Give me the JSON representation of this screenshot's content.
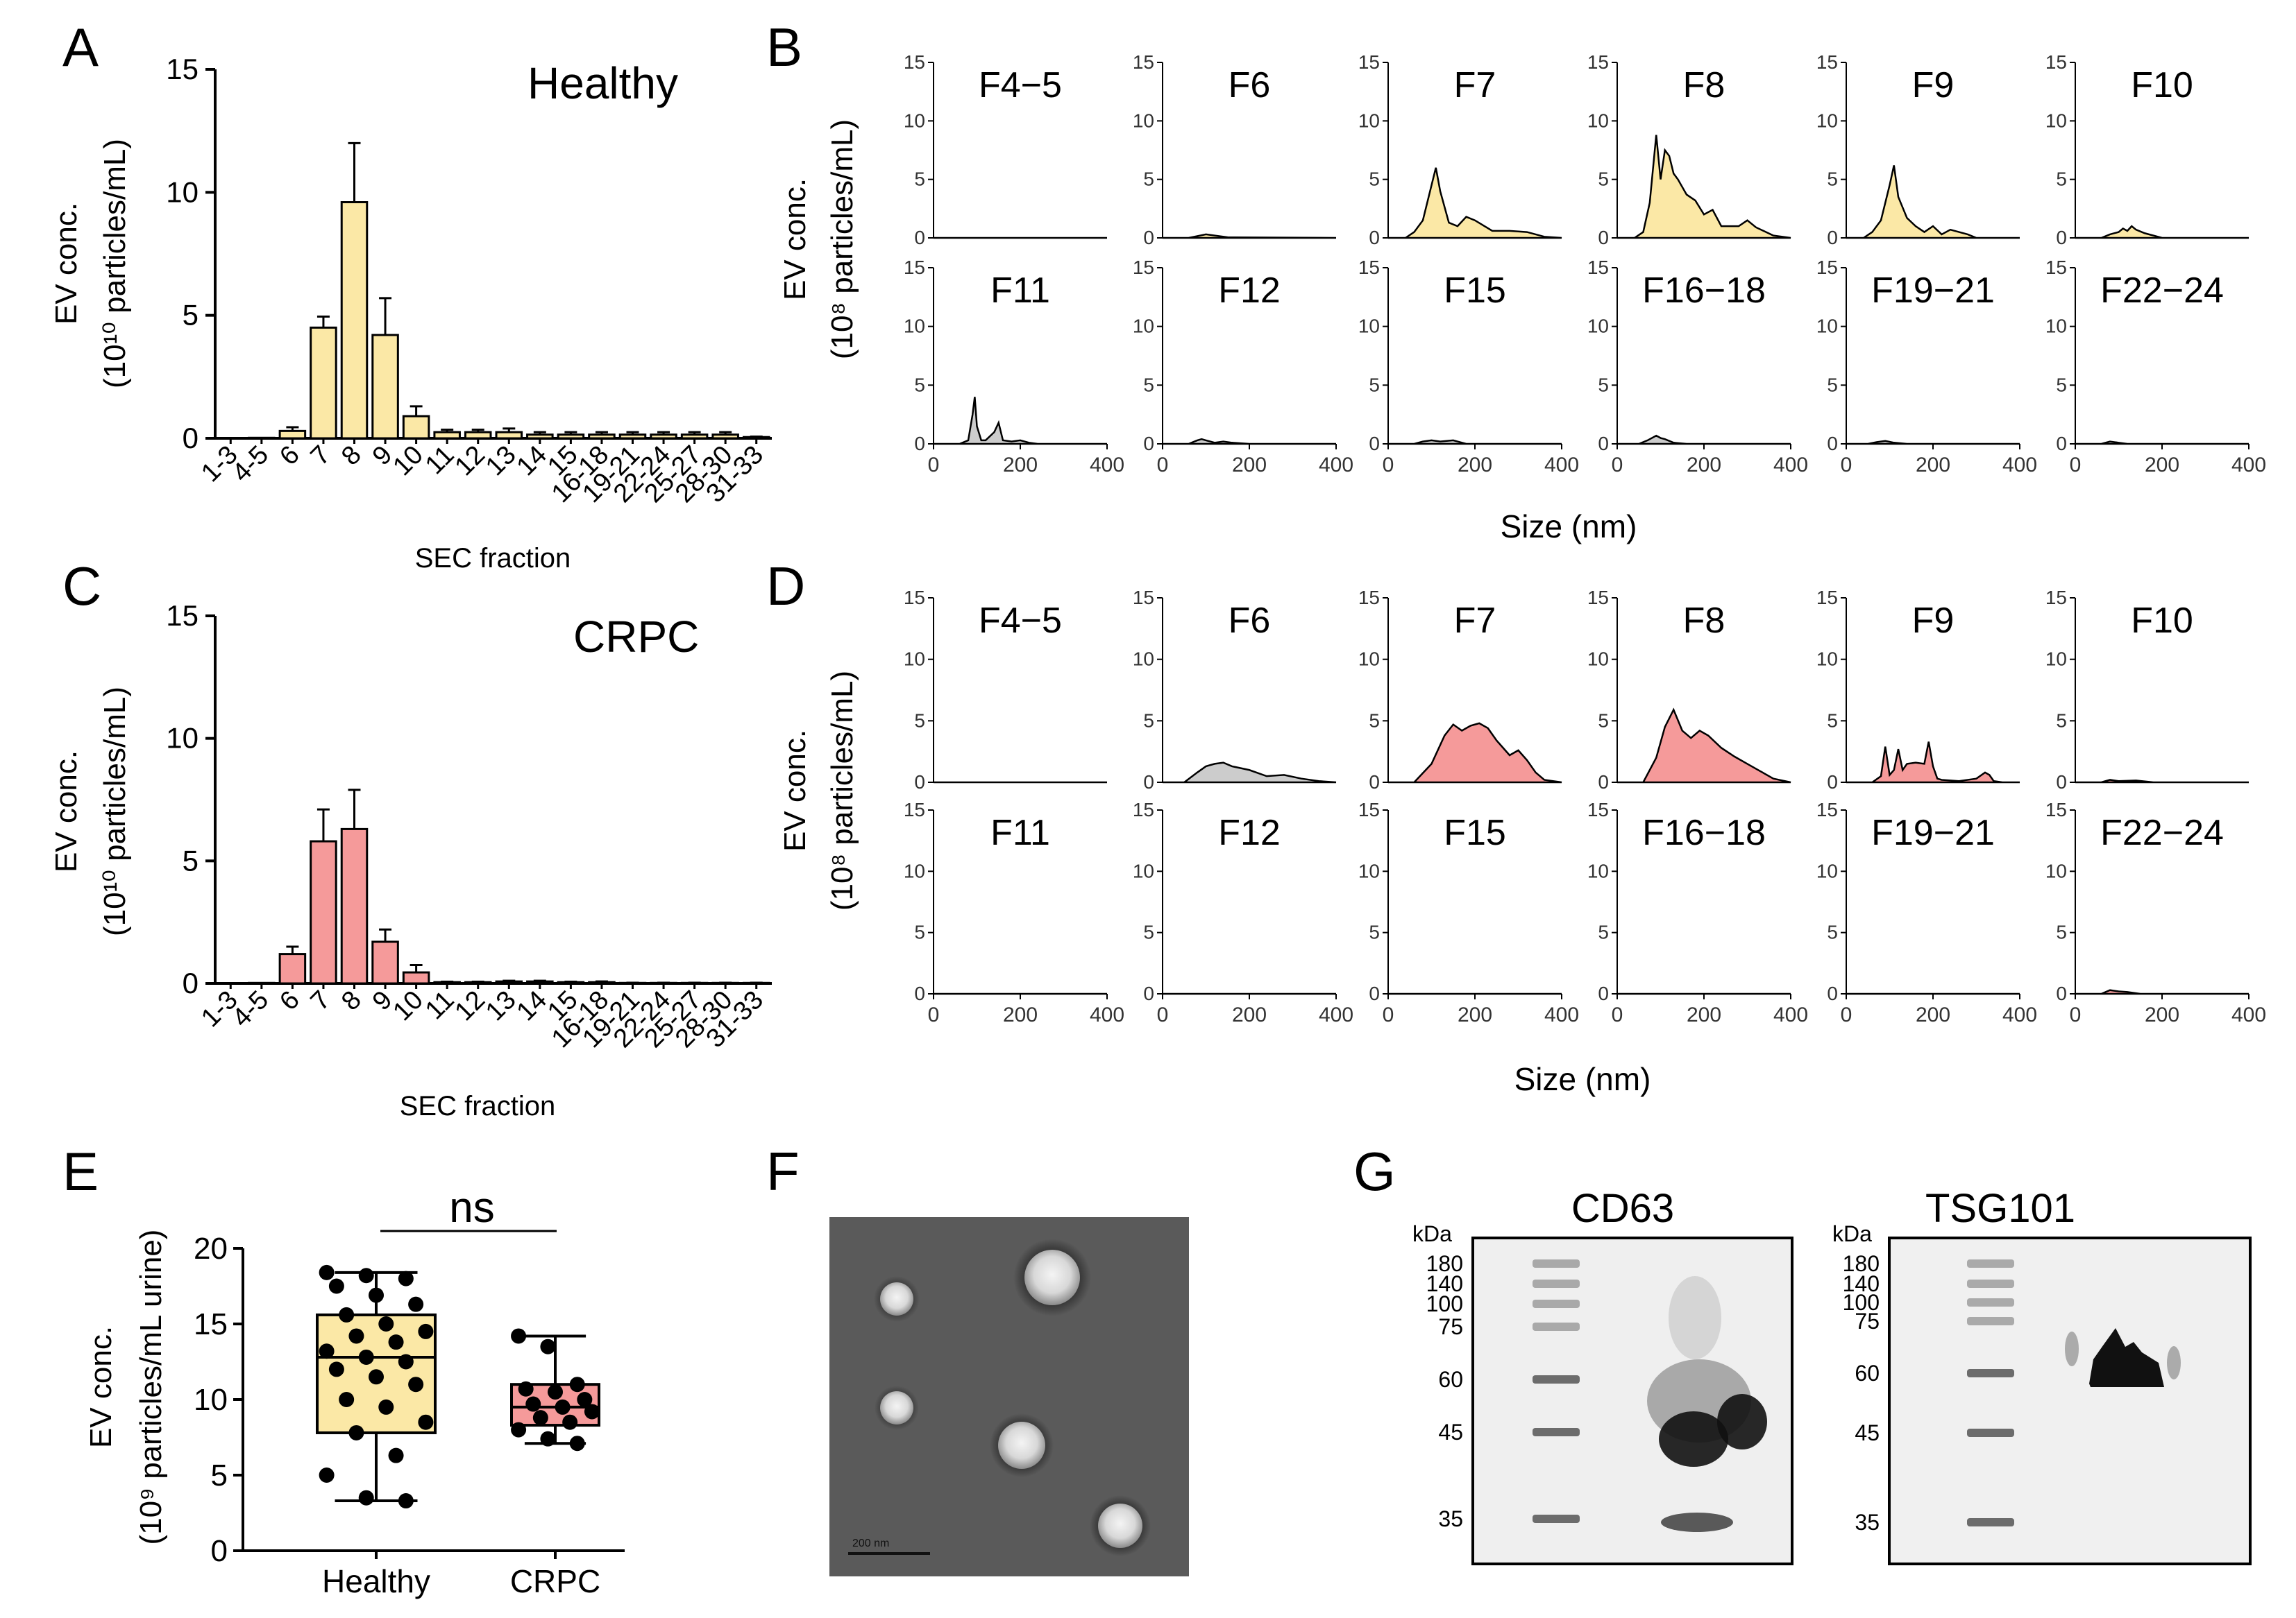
{
  "colors": {
    "healthy": "#fbe8a6",
    "crpc": "#f59a9a",
    "grey": "#cccccc",
    "line": "#000000",
    "tem_bg": "#5a5a5a",
    "blot_bg": "#efefef"
  },
  "panels": {
    "A": {
      "letter": "A",
      "group_label": "Healthy",
      "ylabel_top": "EV conc.",
      "ylabel_bottom": "(10¹⁰ particles/mL)",
      "xlabel": "SEC fraction"
    },
    "C": {
      "letter": "C",
      "group_label": "CRPC",
      "ylabel_top": "EV conc.",
      "ylabel_bottom": "(10¹⁰ particles/mL)",
      "xlabel": "SEC fraction"
    },
    "B": {
      "letter": "B",
      "ylabel_top": "EV conc.",
      "ylabel_bottom": "(10⁸ particles/mL)",
      "xlabel": "Size (nm)"
    },
    "D": {
      "letter": "D",
      "ylabel_top": "EV conc.",
      "ylabel_bottom": "(10⁸ particles/mL)",
      "xlabel": "Size (nm)"
    },
    "E": {
      "letter": "E",
      "ylabel_top": "EV conc.",
      "ylabel_bottom": "(10⁹ particles/mL urine)",
      "significance": "ns"
    },
    "F": {
      "letter": "F",
      "scale_bar": "200 nm"
    },
    "G": {
      "letter": "G",
      "blots": [
        {
          "title": "CD63",
          "unit": "kDa",
          "markers": [
            "180",
            "140",
            "100",
            "75",
            "60",
            "45",
            "35"
          ]
        },
        {
          "title": "TSG101",
          "unit": "kDa",
          "markers": [
            "180",
            "140",
            "100",
            "75",
            "60",
            "45",
            "35"
          ]
        }
      ]
    }
  },
  "chart_data": [
    {
      "panel": "A",
      "type": "bar",
      "categories": [
        "1-3",
        "4-5",
        "6",
        "7",
        "8",
        "9",
        "10",
        "11",
        "12",
        "13",
        "14",
        "15",
        "16-18",
        "19-21",
        "22-24",
        "25-27",
        "28-30",
        "31-33"
      ],
      "values": [
        0.0,
        0.02,
        0.3,
        4.5,
        9.6,
        4.2,
        0.9,
        0.25,
        0.25,
        0.25,
        0.15,
        0.15,
        0.15,
        0.15,
        0.15,
        0.15,
        0.15,
        0.05
      ],
      "errors": [
        0.0,
        0.0,
        0.15,
        0.45,
        2.4,
        1.5,
        0.4,
        0.1,
        0.1,
        0.15,
        0.1,
        0.1,
        0.1,
        0.1,
        0.1,
        0.1,
        0.1,
        0.02
      ],
      "ylim": [
        0,
        15
      ],
      "yticks": [
        0,
        5,
        10,
        15
      ]
    },
    {
      "panel": "C",
      "type": "bar",
      "categories": [
        "1-3",
        "4-5",
        "6",
        "7",
        "8",
        "9",
        "10",
        "11",
        "12",
        "13",
        "14",
        "15",
        "16-18",
        "19-21",
        "22-24",
        "25-27",
        "28-30",
        "31-33"
      ],
      "values": [
        0.0,
        0.02,
        1.2,
        5.8,
        6.3,
        1.7,
        0.45,
        0.05,
        0.05,
        0.08,
        0.08,
        0.05,
        0.05,
        0.02,
        0.02,
        0.02,
        0.02,
        0.02
      ],
      "errors": [
        0.0,
        0.0,
        0.3,
        1.3,
        1.6,
        0.5,
        0.3,
        0.02,
        0.02,
        0.03,
        0.03,
        0.02,
        0.03,
        0.01,
        0.01,
        0.01,
        0.01,
        0.01
      ],
      "ylim": [
        0,
        15
      ],
      "yticks": [
        0,
        5,
        10,
        15
      ]
    },
    {
      "panel": "B",
      "type": "area",
      "xlim": [
        0,
        400
      ],
      "ylim": [
        0,
        15
      ],
      "xticks": [
        0,
        200,
        400
      ],
      "yticks": [
        0,
        5,
        10,
        15
      ],
      "subplots": [
        {
          "label": "F4−5",
          "fill": "healthy",
          "x": [
            0,
            400
          ],
          "y": [
            0,
            0
          ]
        },
        {
          "label": "F6",
          "fill": "healthy",
          "x": [
            0,
            60,
            80,
            100,
            120,
            150,
            400
          ],
          "y": [
            0,
            0,
            0.15,
            0.3,
            0.2,
            0.05,
            0
          ]
        },
        {
          "label": "F7",
          "fill": "healthy",
          "x": [
            0,
            40,
            60,
            80,
            100,
            110,
            120,
            140,
            160,
            180,
            200,
            240,
            280,
            320,
            360,
            400
          ],
          "y": [
            0,
            0,
            0.5,
            1.5,
            4.5,
            6.0,
            4.0,
            1.3,
            1.0,
            1.8,
            1.5,
            0.6,
            0.6,
            0.5,
            0.1,
            0
          ]
        },
        {
          "label": "F8",
          "fill": "healthy",
          "x": [
            0,
            40,
            60,
            75,
            90,
            100,
            110,
            120,
            130,
            140,
            160,
            180,
            200,
            220,
            240,
            280,
            300,
            320,
            360,
            400
          ],
          "y": [
            0,
            0,
            0.5,
            3.0,
            8.8,
            5.0,
            7.5,
            7.0,
            5.5,
            5.0,
            3.7,
            3.2,
            2.0,
            2.4,
            1.0,
            1.0,
            1.5,
            0.9,
            0.2,
            0
          ]
        },
        {
          "label": "F9",
          "fill": "healthy",
          "x": [
            0,
            40,
            60,
            80,
            100,
            110,
            120,
            140,
            160,
            180,
            200,
            220,
            240,
            280,
            300,
            400
          ],
          "y": [
            0,
            0,
            0.5,
            1.5,
            4.5,
            6.2,
            3.5,
            1.7,
            1.0,
            0.5,
            1.0,
            0.3,
            0.7,
            0.3,
            0,
            0
          ]
        },
        {
          "label": "F10",
          "fill": "healthy",
          "x": [
            0,
            60,
            80,
            100,
            110,
            120,
            130,
            140,
            160,
            180,
            200,
            400
          ],
          "y": [
            0,
            0,
            0.3,
            0.5,
            0.8,
            0.6,
            1.0,
            0.7,
            0.4,
            0.2,
            0,
            0
          ]
        },
        {
          "label": "F11",
          "fill": "grey",
          "x": [
            0,
            60,
            80,
            90,
            95,
            100,
            110,
            120,
            140,
            150,
            160,
            180,
            200,
            220,
            240,
            400
          ],
          "y": [
            0,
            0,
            0.3,
            2.5,
            4.0,
            1.5,
            0.3,
            0.3,
            1.0,
            1.8,
            0.3,
            0.2,
            0.3,
            0.1,
            0,
            0
          ]
        },
        {
          "label": "F12",
          "fill": "grey",
          "x": [
            0,
            60,
            80,
            90,
            100,
            120,
            140,
            160,
            200,
            400
          ],
          "y": [
            0,
            0,
            0.3,
            0.4,
            0.3,
            0.1,
            0.2,
            0.1,
            0,
            0
          ]
        },
        {
          "label": "F15",
          "fill": "grey",
          "x": [
            0,
            60,
            80,
            100,
            120,
            150,
            180,
            400
          ],
          "y": [
            0,
            0,
            0.2,
            0.3,
            0.2,
            0.3,
            0,
            0
          ]
        },
        {
          "label": "F16−18",
          "fill": "grey",
          "x": [
            0,
            50,
            70,
            90,
            100,
            110,
            130,
            160,
            400
          ],
          "y": [
            0,
            0,
            0.3,
            0.7,
            0.5,
            0.4,
            0.1,
            0,
            0
          ]
        },
        {
          "label": "F19−21",
          "fill": "grey",
          "x": [
            0,
            50,
            70,
            90,
            110,
            140,
            400
          ],
          "y": [
            0,
            0,
            0.15,
            0.25,
            0.1,
            0,
            0
          ]
        },
        {
          "label": "F22−24",
          "fill": "grey",
          "x": [
            0,
            60,
            80,
            100,
            120,
            400
          ],
          "y": [
            0,
            0,
            0.2,
            0.1,
            0,
            0
          ]
        }
      ]
    },
    {
      "panel": "D",
      "type": "area",
      "xlim": [
        0,
        400
      ],
      "ylim": [
        0,
        15
      ],
      "xticks": [
        0,
        200,
        400
      ],
      "yticks": [
        0,
        5,
        10,
        15
      ],
      "subplots": [
        {
          "label": "F4−5",
          "fill": "crpc",
          "x": [
            0,
            400
          ],
          "y": [
            0,
            0
          ]
        },
        {
          "label": "F6",
          "fill": "grey",
          "x": [
            0,
            50,
            80,
            100,
            120,
            140,
            160,
            200,
            240,
            280,
            320,
            360,
            400
          ],
          "y": [
            0,
            0,
            0.8,
            1.3,
            1.5,
            1.6,
            1.3,
            1.0,
            0.5,
            0.6,
            0.3,
            0.1,
            0
          ]
        },
        {
          "label": "F7",
          "fill": "crpc",
          "x": [
            0,
            60,
            100,
            130,
            150,
            170,
            190,
            210,
            230,
            250,
            280,
            300,
            320,
            340,
            360,
            400
          ],
          "y": [
            0,
            0,
            1.5,
            3.8,
            4.7,
            4.2,
            4.6,
            4.8,
            4.4,
            3.4,
            2.2,
            2.6,
            1.8,
            0.8,
            0.2,
            0
          ]
        },
        {
          "label": "F8",
          "fill": "crpc",
          "x": [
            0,
            60,
            90,
            110,
            130,
            150,
            170,
            190,
            210,
            240,
            270,
            300,
            330,
            360,
            400
          ],
          "y": [
            0,
            0,
            2.0,
            4.5,
            5.9,
            4.2,
            3.6,
            4.2,
            3.8,
            2.8,
            2.1,
            1.5,
            0.9,
            0.3,
            0
          ]
        },
        {
          "label": "F9",
          "fill": "crpc",
          "x": [
            0,
            60,
            80,
            90,
            100,
            110,
            120,
            130,
            140,
            160,
            180,
            190,
            200,
            210,
            220,
            260,
            300,
            320,
            330,
            340,
            360,
            400
          ],
          "y": [
            0,
            0,
            0.5,
            2.9,
            0.6,
            1.0,
            2.7,
            1.0,
            1.5,
            1.6,
            1.5,
            3.3,
            1.3,
            0.3,
            0.2,
            0.1,
            0.3,
            0.8,
            0.6,
            0.1,
            0,
            0
          ]
        },
        {
          "label": "F10",
          "fill": "crpc",
          "x": [
            0,
            60,
            80,
            100,
            140,
            180,
            400
          ],
          "y": [
            0,
            0,
            0.2,
            0.1,
            0.15,
            0,
            0
          ]
        },
        {
          "label": "F11",
          "fill": "crpc",
          "x": [
            0,
            400
          ],
          "y": [
            0,
            0
          ]
        },
        {
          "label": "F12",
          "fill": "crpc",
          "x": [
            0,
            400
          ],
          "y": [
            0,
            0
          ]
        },
        {
          "label": "F15",
          "fill": "crpc",
          "x": [
            0,
            400
          ],
          "y": [
            0,
            0
          ]
        },
        {
          "label": "F16−18",
          "fill": "crpc",
          "x": [
            0,
            400
          ],
          "y": [
            0,
            0
          ]
        },
        {
          "label": "F19−21",
          "fill": "crpc",
          "x": [
            0,
            400
          ],
          "y": [
            0,
            0
          ]
        },
        {
          "label": "F22−24",
          "fill": "crpc",
          "x": [
            0,
            60,
            80,
            100,
            120,
            150,
            400
          ],
          "y": [
            0,
            0,
            0.3,
            0.2,
            0.15,
            0,
            0
          ]
        }
      ]
    },
    {
      "panel": "E",
      "type": "box",
      "ylim": [
        0,
        20
      ],
      "yticks": [
        0,
        5,
        10,
        15,
        20
      ],
      "groups": [
        {
          "name": "Healthy",
          "fill": "healthy",
          "min": 3.3,
          "q1": 7.8,
          "median": 12.8,
          "q3": 15.6,
          "max": 18.4,
          "points": [
            18.4,
            18.2,
            18.0,
            17.5,
            16.9,
            16.3,
            15.6,
            15.0,
            14.5,
            14.2,
            13.8,
            13.2,
            12.8,
            12.5,
            12.0,
            11.5,
            11.0,
            10.0,
            9.5,
            8.5,
            7.8,
            6.3,
            5.0,
            3.5,
            3.3
          ]
        },
        {
          "name": "CRPC",
          "fill": "crpc",
          "min": 7.1,
          "q1": 8.3,
          "median": 9.5,
          "q3": 11.0,
          "max": 14.2,
          "points": [
            14.2,
            13.5,
            11.0,
            10.7,
            10.5,
            10.0,
            9.7,
            9.5,
            9.2,
            8.8,
            8.5,
            8.0,
            7.4,
            7.1
          ]
        }
      ]
    }
  ]
}
